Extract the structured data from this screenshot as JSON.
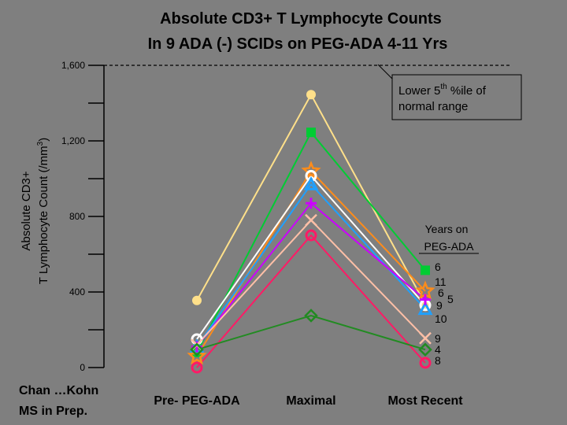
{
  "chart_data": {
    "type": "line",
    "title": "Absolute CD3+ T Lymphocyte Counts",
    "subtitle": "In 9 ADA (-) SCIDs on PEG-ADA 4-11 Yrs",
    "ylabel_line1": "Absolute CD3+",
    "ylabel_line2_prefix": "T Lymphocyte Count (/mm",
    "ylabel_sup": "3",
    "ylabel_suffix": ")",
    "categories": [
      "Pre- PEG-ADA",
      "Maximal",
      "Most Recent"
    ],
    "ylim": [
      0,
      1600
    ],
    "y_ticks": [
      {
        "value": 0,
        "label": "0"
      },
      {
        "value": 400,
        "label": "400"
      },
      {
        "value": 800,
        "label": "800"
      },
      {
        "value": 1200,
        "label": "1,200"
      },
      {
        "value": 1600,
        "label": "1,600"
      }
    ],
    "reference": {
      "value": 1600,
      "label_line1_prefix": "Lower 5",
      "label_sup": "th",
      "label_line1_suffix": " %ile of",
      "label_line2": "normal range"
    },
    "legend_title_line1": "Years on",
    "legend_title_line2": "PEG-ADA",
    "series": [
      {
        "name": "6",
        "color": "#ffe08a",
        "marker": "circle-filled",
        "values": [
          355,
          1445,
          335
        ]
      },
      {
        "name": "6",
        "color": "#00cc33",
        "marker": "square-filled",
        "values": [
          80,
          1245,
          515
        ]
      },
      {
        "name": "11",
        "color": "#ff8c1a",
        "marker": "star",
        "values": [
          60,
          1040,
          405
        ]
      },
      {
        "name": "5",
        "color": "#ffffff",
        "marker": "circle-open",
        "values": [
          150,
          1015,
          330
        ]
      },
      {
        "name": "10",
        "color": "#1fa0ff",
        "marker": "triangle-open",
        "values": [
          110,
          970,
          310
        ]
      },
      {
        "name": "9",
        "color": "#cc00ff",
        "marker": "plus",
        "values": [
          110,
          870,
          360
        ]
      },
      {
        "name": "9",
        "color": "#ffbfa6",
        "marker": "cross",
        "values": [
          120,
          780,
          155
        ]
      },
      {
        "name": "8",
        "color": "#ff1a66",
        "marker": "circle-open",
        "values": [
          0,
          700,
          25
        ]
      },
      {
        "name": "4",
        "color": "#228b22",
        "marker": "diamond",
        "values": [
          95,
          275,
          95
        ]
      }
    ],
    "legend_rows": [
      [
        {
          "text": "6",
          "series": 1
        }
      ],
      [
        {
          "text": "11",
          "series": 2
        }
      ],
      [
        {
          "text": "6",
          "series": 0
        },
        {
          "text": "5",
          "series": 3
        }
      ],
      [
        {
          "text": "9",
          "series": 5
        }
      ],
      [
        {
          "text": "10",
          "series": 4
        }
      ],
      [
        {
          "text": "9",
          "series": 6
        }
      ],
      [
        {
          "text": "4",
          "series": 8
        }
      ],
      [
        {
          "text": "8",
          "series": 7
        }
      ]
    ]
  },
  "citation": {
    "line1": "Chan …Kohn",
    "line2": "MS in Prep."
  }
}
